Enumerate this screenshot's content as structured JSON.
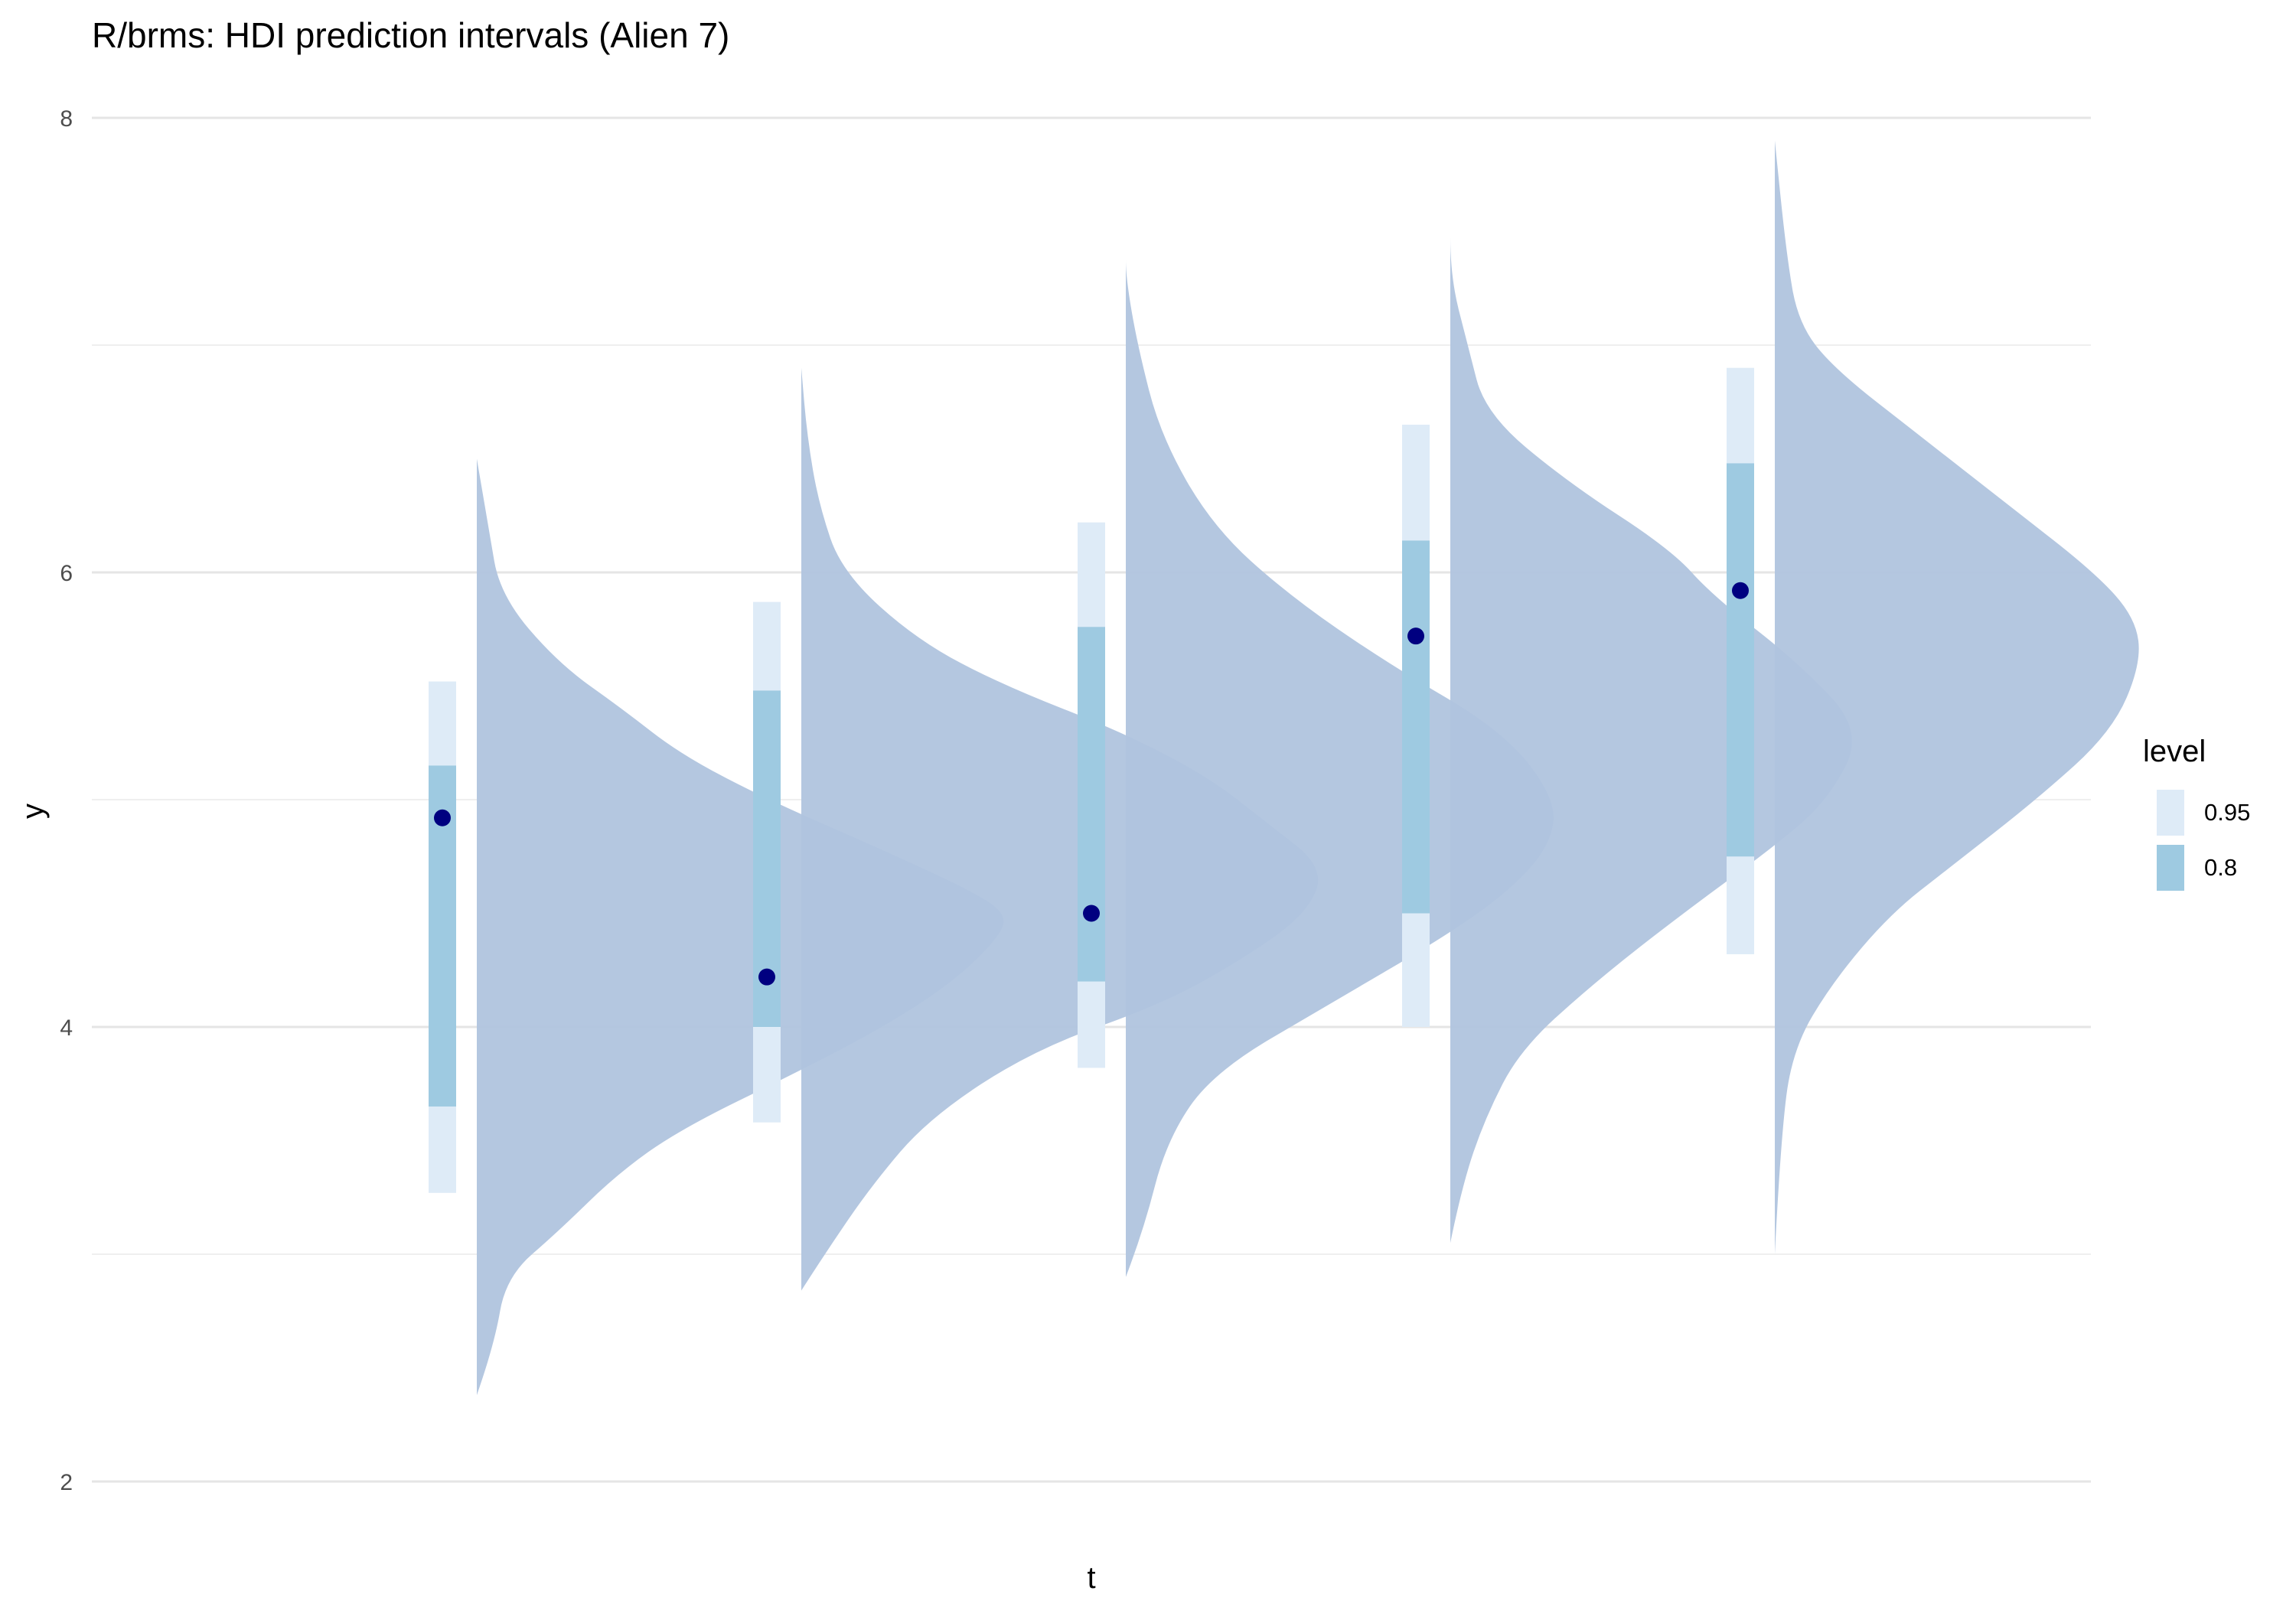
{
  "chart_data": {
    "type": "halfeye",
    "title": "R/brms: HDI prediction intervals (Alien 7)",
    "xlabel": "t",
    "ylabel": "y",
    "ylim": [
      1.7,
      8.2
    ],
    "yticks": [
      2,
      4,
      6,
      8
    ],
    "grid": "horizontal",
    "legend": {
      "title": "level",
      "position": "right",
      "entries": [
        {
          "label": "0.95",
          "color": "#deebf7"
        },
        {
          "label": "0.8",
          "color": "#9ecae1"
        }
      ]
    },
    "colors": {
      "density": "#b0c4de",
      "point": "#000080",
      "interval_95": "#deebf7",
      "interval_80": "#9ecae1",
      "grid": "#e5e5e5"
    },
    "groups": [
      {
        "point": 4.92,
        "interval_80": [
          3.65,
          5.15
        ],
        "interval_95": [
          3.27,
          5.52
        ],
        "density": {
          "range": [
            2.38,
            6.5
          ],
          "y": [
            2.38,
            2.6,
            2.9,
            3.1,
            3.35,
            3.55,
            3.8,
            4.0,
            4.2,
            4.4,
            4.5,
            4.6,
            4.8,
            5.0,
            5.2,
            5.4,
            5.6,
            5.9,
            6.2,
            6.5
          ],
          "height": [
            0.0,
            0.03,
            0.05,
            0.14,
            0.24,
            0.35,
            0.55,
            0.7,
            0.82,
            0.9,
            0.91,
            0.85,
            0.68,
            0.5,
            0.35,
            0.25,
            0.14,
            0.04,
            0.02,
            0.0
          ]
        }
      },
      {
        "point": 4.22,
        "interval_80": [
          4.0,
          5.48
        ],
        "interval_95": [
          3.58,
          5.87
        ],
        "density": {
          "range": [
            2.84,
            6.9
          ],
          "y": [
            2.84,
            3.0,
            3.3,
            3.6,
            3.9,
            4.1,
            4.3,
            4.5,
            4.7,
            4.9,
            5.1,
            5.3,
            5.5,
            5.7,
            6.0,
            6.3,
            6.6,
            6.9
          ],
          "height": [
            0.0,
            0.04,
            0.12,
            0.22,
            0.4,
            0.62,
            0.76,
            0.87,
            0.9,
            0.8,
            0.7,
            0.55,
            0.35,
            0.2,
            0.07,
            0.03,
            0.01,
            0.0
          ]
        }
      },
      {
        "point": 4.5,
        "interval_80": [
          4.2,
          5.76
        ],
        "interval_95": [
          3.82,
          6.22
        ],
        "density": {
          "range": [
            2.9,
            7.45
          ],
          "y": [
            2.9,
            3.1,
            3.5,
            3.8,
            4.1,
            4.4,
            4.6,
            4.8,
            5.0,
            5.3,
            5.6,
            5.9,
            6.2,
            6.6,
            7.0,
            7.3,
            7.45
          ],
          "height": [
            0.0,
            0.03,
            0.07,
            0.15,
            0.35,
            0.55,
            0.66,
            0.73,
            0.74,
            0.65,
            0.45,
            0.28,
            0.15,
            0.06,
            0.02,
            0.0,
            0.0
          ]
        }
      },
      {
        "point": 5.72,
        "interval_80": [
          4.5,
          6.14
        ],
        "interval_95": [
          4.0,
          6.65
        ],
        "density": {
          "range": [
            3.05,
            7.65
          ],
          "y": [
            3.05,
            3.3,
            3.6,
            3.9,
            4.2,
            4.5,
            4.8,
            5.0,
            5.3,
            5.6,
            5.9,
            6.1,
            6.4,
            6.7,
            7.0,
            7.3,
            7.65
          ],
          "height": [
            0.0,
            0.02,
            0.06,
            0.12,
            0.25,
            0.4,
            0.56,
            0.65,
            0.71,
            0.6,
            0.45,
            0.38,
            0.2,
            0.06,
            0.03,
            0.0,
            0.0
          ]
        }
      },
      {
        "point": 5.92,
        "interval_80": [
          4.75,
          6.48
        ],
        "interval_95": [
          4.32,
          6.9
        ],
        "density": {
          "range": [
            3.0,
            7.9
          ],
          "y": [
            3.0,
            3.5,
            3.9,
            4.2,
            4.5,
            4.7,
            5.0,
            5.3,
            5.6,
            5.8,
            6.0,
            6.3,
            6.6,
            6.9,
            7.1,
            7.4,
            7.9
          ],
          "height": [
            0.0,
            0.01,
            0.03,
            0.1,
            0.2,
            0.3,
            0.45,
            0.58,
            0.63,
            0.62,
            0.55,
            0.4,
            0.25,
            0.1,
            0.04,
            0.02,
            0.0
          ]
        }
      }
    ]
  }
}
